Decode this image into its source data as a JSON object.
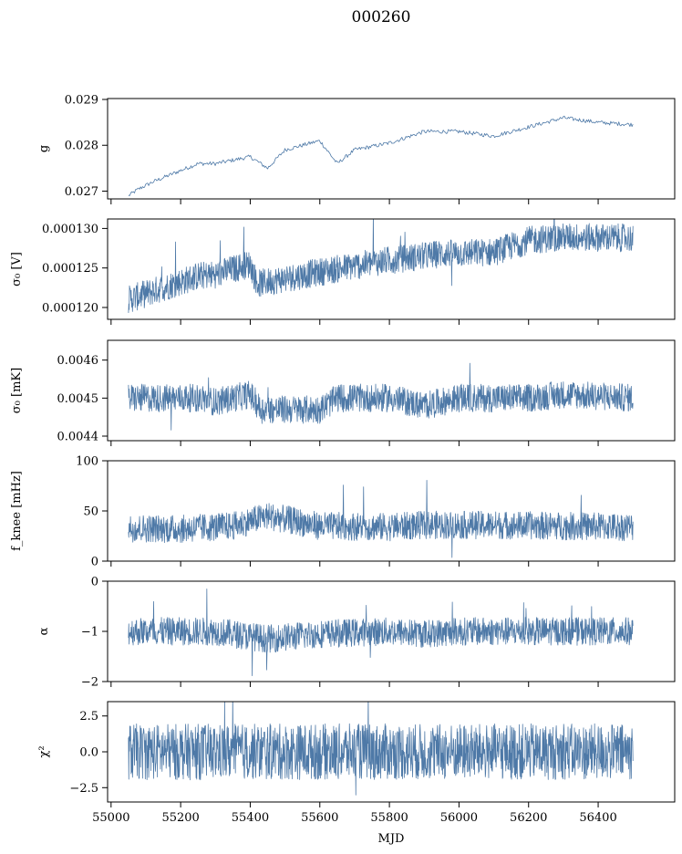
{
  "figure": {
    "title": "000260",
    "xlabel": "MJD"
  },
  "colors": {
    "line": "#4e79a7",
    "axes": "#000000"
  },
  "chart_data": [
    {
      "type": "line",
      "ylabel": "g",
      "xlim": [
        54990,
        56620
      ],
      "ylim": [
        0.02683,
        0.02902
      ],
      "yticks": [
        0.027,
        0.028,
        0.029
      ],
      "yticklabels": [
        "0.027",
        "0.028",
        "0.029"
      ],
      "noise": "low",
      "series": [
        {
          "x": [
            55050,
            55080,
            55120,
            55200,
            55250,
            55300,
            55400,
            55450,
            55500,
            55600,
            55650,
            55700,
            55800,
            55900,
            56000,
            56100,
            56200,
            56300,
            56400,
            56500
          ],
          "values": [
            0.0269,
            0.02705,
            0.0272,
            0.02745,
            0.0276,
            0.0276,
            0.02775,
            0.0275,
            0.0279,
            0.0281,
            0.0276,
            0.0279,
            0.02805,
            0.0283,
            0.0283,
            0.0282,
            0.0284,
            0.0286,
            0.0285,
            0.02845
          ]
        }
      ]
    },
    {
      "type": "line",
      "ylabel": "σ₀ [V]",
      "xlim": [
        54990,
        56620
      ],
      "ylim": [
        0.0001185,
        0.0001312
      ],
      "yticks": [
        0.00012,
        0.000125,
        0.00013
      ],
      "yticklabels": [
        "0.000120",
        "0.000125",
        "0.000130"
      ],
      "noise": "high",
      "series": [
        {
          "x": [
            55050,
            55150,
            55250,
            55300,
            55400,
            55420,
            55600,
            55800,
            55900,
            55950,
            56100,
            56200,
            56300,
            56500
          ],
          "values": [
            0.000121,
            0.0001225,
            0.000124,
            0.0001242,
            0.0001255,
            0.000123,
            0.0001245,
            0.000126,
            0.0001265,
            0.0001268,
            0.000127,
            0.0001285,
            0.0001289,
            0.0001288
          ]
        }
      ]
    },
    {
      "type": "line",
      "ylabel": "σ₀ [mK]",
      "xlim": [
        54990,
        56620
      ],
      "ylim": [
        0.004388,
        0.004652
      ],
      "yticks": [
        0.0044,
        0.0045,
        0.0046
      ],
      "yticklabels": [
        "0.0044",
        "0.0045",
        "0.0046"
      ],
      "noise": "high",
      "series": [
        {
          "x": [
            55050,
            55250,
            55300,
            55400,
            55430,
            55600,
            55650,
            55800,
            55900,
            56000,
            56200,
            56300,
            56500
          ],
          "values": [
            0.0045,
            0.0045,
            0.00449,
            0.00451,
            0.00447,
            0.00447,
            0.0045,
            0.0045,
            0.00448,
            0.0045,
            0.0045,
            0.00451,
            0.0045
          ]
        }
      ]
    },
    {
      "type": "line",
      "ylabel": "f_knee [mHz]",
      "xlim": [
        54990,
        56620
      ],
      "ylim": [
        0,
        100
      ],
      "yticks": [
        0,
        50,
        100
      ],
      "yticklabels": [
        "0",
        "50",
        "100"
      ],
      "noise": "high",
      "series": [
        {
          "x": [
            55050,
            55200,
            55350,
            55450,
            55600,
            55800,
            55900,
            56100,
            56300,
            56500
          ],
          "values": [
            33,
            32,
            35,
            45,
            35,
            34,
            36,
            36,
            35,
            34
          ]
        }
      ]
    },
    {
      "type": "line",
      "ylabel": "α",
      "xlim": [
        54990,
        56620
      ],
      "ylim": [
        -2,
        0
      ],
      "yticks": [
        -2,
        -1,
        0
      ],
      "yticklabels": [
        "−2",
        "−1",
        "0"
      ],
      "noise": "high",
      "series": [
        {
          "x": [
            55050,
            55300,
            55450,
            55600,
            55800,
            55900,
            56000,
            56300,
            56500
          ],
          "values": [
            -1.0,
            -1.0,
            -1.15,
            -1.05,
            -1.0,
            -1.05,
            -1.0,
            -1.0,
            -1.0
          ]
        }
      ]
    },
    {
      "type": "line",
      "ylabel": "χ²",
      "xlim": [
        54990,
        56620
      ],
      "ylim": [
        -3.5,
        3.5
      ],
      "yticks": [
        -2.5,
        0,
        2.5
      ],
      "yticklabels": [
        "−2.5",
        "0.0",
        "2.5"
      ],
      "xticks": [
        55000,
        55200,
        55400,
        55600,
        55800,
        56000,
        56200,
        56400
      ],
      "xticklabels": [
        "55000",
        "55200",
        "55400",
        "55600",
        "55800",
        "56000",
        "56200",
        "56400"
      ],
      "noise": "high",
      "series": [
        {
          "x": [
            55050,
            55300,
            55600,
            55900,
            56200,
            56500
          ],
          "values": [
            0,
            0,
            0,
            0,
            0,
            0
          ]
        }
      ]
    }
  ]
}
